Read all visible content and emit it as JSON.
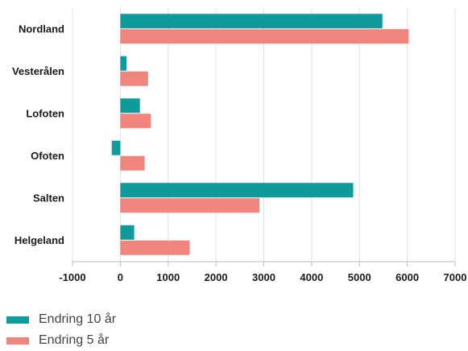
{
  "chart_data": {
    "type": "bar",
    "orientation": "horizontal",
    "categories": [
      "Nordland",
      "Vesterålen",
      "Lofoten",
      "Ofoten",
      "Salten",
      "Helgeland"
    ],
    "series": [
      {
        "name": "Endring 10 år",
        "color": "#0f9b9b",
        "values": [
          5480,
          130,
          410,
          -180,
          4870,
          290
        ]
      },
      {
        "name": "Endring 5 år",
        "color": "#f0857d",
        "values": [
          6030,
          580,
          640,
          510,
          2910,
          1450
        ]
      }
    ],
    "xlim": [
      -1000,
      7000
    ],
    "xticks": [
      -1000,
      0,
      1000,
      2000,
      3000,
      4000,
      5000,
      6000,
      7000
    ],
    "grid": "vertical",
    "legend_position": "bottom-left"
  }
}
